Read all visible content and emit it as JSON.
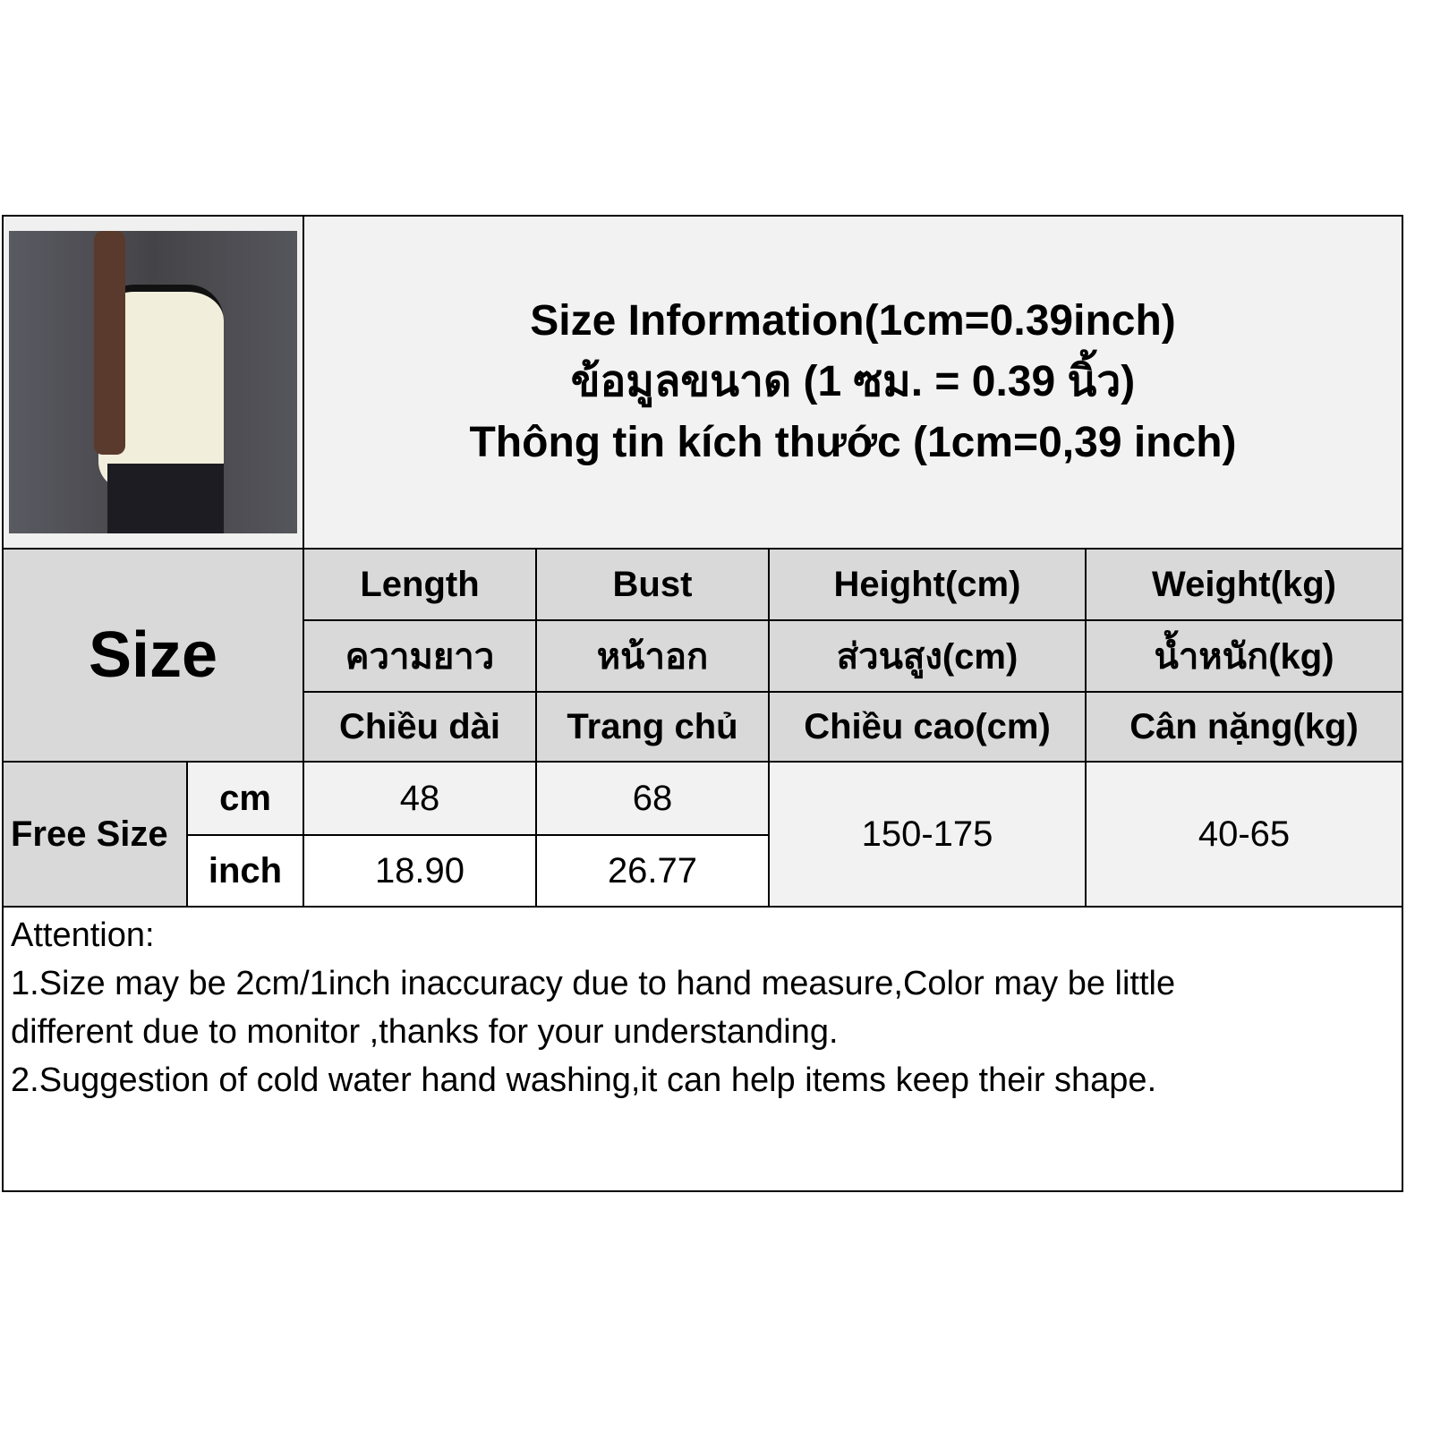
{
  "title": {
    "en": "Size Information(1cm=0.39inch)",
    "th": "ข้อมูลขนาด (1 ซม. = 0.39 นิ้ว)",
    "vi": "Thông tin kích thước (1cm=0,39 inch)"
  },
  "size_label": "Size",
  "columns": [
    {
      "en": "Length",
      "th": "ความยาว",
      "vi": "Chiều dài"
    },
    {
      "en": "Bust",
      "th": "หน้าอก",
      "vi": "Trang chủ"
    },
    {
      "en": "Height(cm)",
      "th": "ส่วนสูง(cm)",
      "vi": "Chiều cao(cm)"
    },
    {
      "en": "Weight(kg)",
      "th": "น้ำหนัก(kg)",
      "vi": "Cân nặng(kg)"
    }
  ],
  "rows": {
    "size_name": "Free Size",
    "cm": {
      "unit": "cm",
      "length": "48",
      "bust": "68"
    },
    "inch": {
      "unit": "inch",
      "length": "18.90",
      "bust": "26.77"
    },
    "height": "150-175",
    "weight": "40-65"
  },
  "attention": {
    "heading": "Attention:",
    "line1": "1.Size may be 2cm/1inch inaccuracy due to hand measure,Color may be little different due to monitor ,thanks for your understanding.",
    "line2": "2.Suggestion of cold water hand washing,it can help items keep their shape."
  },
  "colors": {
    "header_bg": "#d9d9d9",
    "light_bg": "#f2f2f2",
    "border": "#000000"
  }
}
